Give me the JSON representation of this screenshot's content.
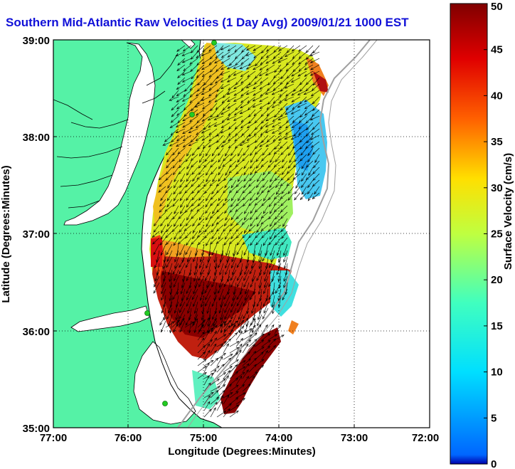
{
  "title": "Southern Mid-Atlantic Raw Velocities (1 Day Avg) 2009/01/21 1000 EST",
  "map": {
    "xlabel": "Longitude (Degrees:Minutes)",
    "ylabel": "Latitude (Degrees:Minutes)",
    "x_ticks": [
      "77:00",
      "76:00",
      "75:00",
      "74:00",
      "73:00",
      "72:00"
    ],
    "y_ticks": [
      "39:00",
      "38:00",
      "37:00",
      "36:00",
      "35:00"
    ],
    "lon_range": [
      -77,
      -72
    ],
    "lat_range": [
      35,
      39
    ],
    "grid": true,
    "land_color": "#55f2a6",
    "water_color": "#ffffff",
    "station_color": "#22cc22"
  },
  "colorbar": {
    "label": "Surface Velocity (cm/s)",
    "range": [
      0,
      50
    ],
    "ticks": [
      "0",
      "5",
      "10",
      "15",
      "20",
      "25",
      "30",
      "35",
      "40",
      "45",
      "50"
    ],
    "colormap": "jet"
  }
}
